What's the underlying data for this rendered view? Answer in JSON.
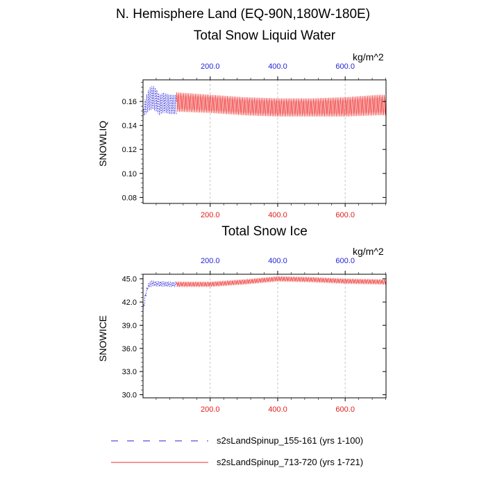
{
  "figure": {
    "suptitle": "N. Hemisphere Land (EQ-90N,180W-180E)"
  },
  "legend": [
    {
      "name": "s2sLandSpinup_155-161 (yrs 1-100)",
      "color": "#2a22d8",
      "dash": "dashed"
    },
    {
      "name": "s2sLandSpinup_713-720 (yrs 1-721)",
      "color": "#ee2a2a",
      "dash": "solid"
    }
  ],
  "chart_data": [
    {
      "type": "line",
      "title": "Total Snow Liquid Water",
      "units": "kg/m^2",
      "ylabel": "SNOWLIQ",
      "xlim": [
        1,
        721
      ],
      "ylim": [
        0.075,
        0.178
      ],
      "yticks": [
        0.08,
        0.1,
        0.12,
        0.14,
        0.16
      ],
      "ytick_labels": [
        "0.08",
        "0.10",
        "0.12",
        "0.14",
        "0.16"
      ],
      "xticks": [
        200,
        400,
        600
      ],
      "bottom_tick_labels": [
        "200.0",
        "400.0",
        "600.0"
      ],
      "top_tick_labels": [
        "200.0",
        "400.0",
        "600.0"
      ],
      "grid": "vertical dashed at x ticks",
      "series": [
        {
          "name": "s2sLandSpinup_155-161 (yrs 1-100)",
          "x_range": [
            1,
            100
          ],
          "seasonal_cycle": true,
          "anchors_x": [
            1,
            5,
            10,
            20,
            30,
            40,
            50,
            60,
            70,
            80,
            90,
            100
          ],
          "anchors_max": [
            0.152,
            0.16,
            0.165,
            0.172,
            0.174,
            0.171,
            0.166,
            0.168,
            0.167,
            0.166,
            0.166,
            0.166
          ],
          "anchors_min": [
            0.145,
            0.148,
            0.149,
            0.152,
            0.153,
            0.151,
            0.148,
            0.15,
            0.15,
            0.149,
            0.149,
            0.149
          ]
        },
        {
          "name": "s2sLandSpinup_713-720 (yrs 1-721)",
          "x_range": [
            100,
            721
          ],
          "seasonal_cycle": true,
          "anchors_x": [
            100,
            200,
            300,
            400,
            500,
            600,
            700,
            721
          ],
          "anchors_max": [
            0.168,
            0.166,
            0.164,
            0.163,
            0.163,
            0.164,
            0.166,
            0.166
          ],
          "anchors_min": [
            0.151,
            0.15,
            0.148,
            0.147,
            0.147,
            0.147,
            0.148,
            0.148
          ]
        }
      ]
    },
    {
      "type": "line",
      "title": "Total Snow Ice",
      "units": "kg/m^2",
      "ylabel": "SNOWICE",
      "xlim": [
        1,
        721
      ],
      "ylim": [
        29.6,
        45.6
      ],
      "yticks": [
        30.0,
        33.0,
        36.0,
        39.0,
        42.0,
        45.0
      ],
      "ytick_labels": [
        "30.0",
        "33.0",
        "36.0",
        "39.0",
        "42.0",
        "45.0"
      ],
      "xticks": [
        200,
        400,
        600
      ],
      "bottom_tick_labels": [
        "200.0",
        "400.0",
        "600.0"
      ],
      "top_tick_labels": [
        "200.0",
        "400.0",
        "600.0"
      ],
      "grid": "vertical dashed at x ticks",
      "series": [
        {
          "name": "s2sLandSpinup_155-161 (yrs 1-100)",
          "x_range": [
            1,
            100
          ],
          "seasonal_cycle": true,
          "anchors_x": [
            1,
            5,
            10,
            15,
            20,
            30,
            40,
            60,
            80,
            100
          ],
          "anchors_max": [
            41.2,
            42.6,
            43.6,
            44.3,
            44.6,
            44.8,
            44.7,
            44.7,
            44.6,
            44.6
          ],
          "anchors_min": [
            40.2,
            41.6,
            42.8,
            43.6,
            43.9,
            44.1,
            44.0,
            44.0,
            44.0,
            44.0
          ]
        },
        {
          "name": "s2sLandSpinup_713-720 (yrs 1-721)",
          "x_range": [
            100,
            721
          ],
          "seasonal_cycle": true,
          "anchors_x": [
            100,
            200,
            300,
            400,
            500,
            600,
            721
          ],
          "anchors_max": [
            44.6,
            44.6,
            44.9,
            45.3,
            45.2,
            45.0,
            44.9
          ],
          "anchors_min": [
            44.0,
            44.0,
            44.3,
            44.7,
            44.6,
            44.4,
            44.3
          ]
        }
      ]
    }
  ]
}
